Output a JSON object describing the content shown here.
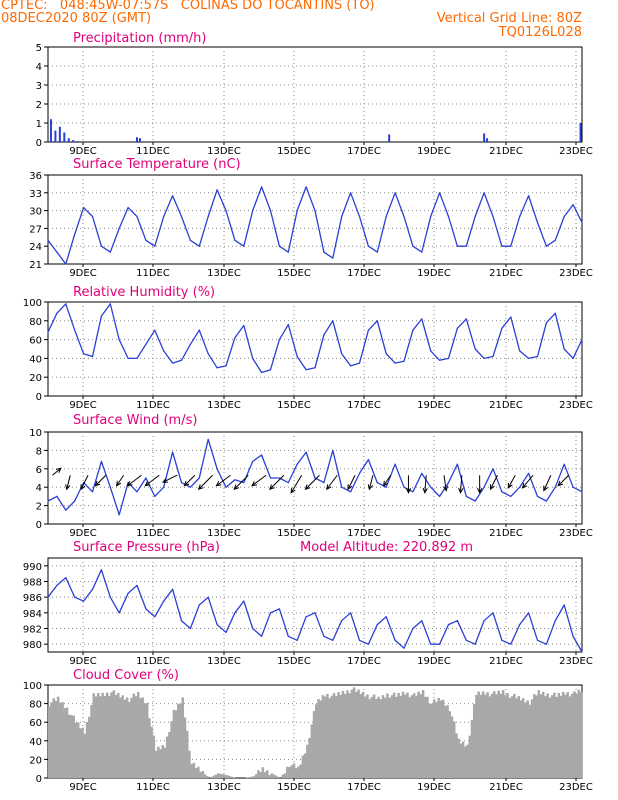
{
  "header": {
    "line1_left": "CPTEC:   048:45W-07:57S   COLINAS DO TOCANTINS (TO)",
    "line2_left": "08DEC2020 80Z (GMT)",
    "line2_right": "Vertical Grid Line: 80Z",
    "line3_right": "TQ0126L028"
  },
  "x_axis_labels": [
    "9DEC",
    "11DEC",
    "13DEC",
    "15DEC",
    "17DEC",
    "19DEC",
    "21DEC",
    "23DEC"
  ],
  "colors": {
    "line": "#2a3fd6",
    "title": "#e0007a",
    "header": "#ff6a00",
    "cloud": "#a8a8a8",
    "arrow": "#000000"
  },
  "chart_data": [
    {
      "id": "precip",
      "type": "bar",
      "title": "Precipitation (mm/h)",
      "ylim": [
        0,
        5
      ],
      "yticks": [
        0,
        1,
        2,
        3,
        4,
        5
      ],
      "xlim": [
        0,
        360
      ],
      "x": [
        2,
        5,
        8,
        11,
        14,
        17,
        20,
        60,
        62,
        230,
        294,
        296,
        359
      ],
      "values": [
        1.2,
        0.6,
        0.8,
        0.5,
        0.2,
        0.1,
        0.05,
        0.25,
        0.2,
        0.4,
        0.45,
        0.2,
        1.0
      ]
    },
    {
      "id": "temp",
      "type": "line",
      "title": "Surface Temperature (nC)",
      "ylim": [
        21,
        36
      ],
      "yticks": [
        21,
        24,
        27,
        30,
        33,
        36
      ],
      "xlim": [
        0,
        360
      ],
      "x": [
        0,
        6,
        12,
        18,
        24,
        30,
        36,
        42,
        48,
        54,
        60,
        66,
        72,
        78,
        84,
        90,
        96,
        102,
        108,
        114,
        120,
        126,
        132,
        138,
        144,
        150,
        156,
        162,
        168,
        174,
        180,
        186,
        192,
        198,
        204,
        210,
        216,
        222,
        228,
        234,
        240,
        246,
        252,
        258,
        264,
        270,
        276,
        282,
        288,
        294,
        300,
        306,
        312,
        318,
        324,
        330,
        336,
        342,
        348,
        354,
        360
      ],
      "values": [
        25,
        23,
        21,
        26,
        30.5,
        29,
        24,
        23,
        27,
        30.5,
        29,
        25,
        24,
        29,
        32.5,
        29,
        25,
        24,
        29,
        33.5,
        30,
        25,
        24,
        30,
        34,
        30,
        24,
        23,
        30,
        34,
        30,
        23,
        22,
        29,
        33,
        29,
        24,
        23,
        29,
        33,
        29,
        24,
        23,
        29,
        33,
        29,
        24,
        24,
        29,
        33,
        29,
        24,
        24,
        29,
        32.5,
        28,
        24,
        25,
        29,
        31,
        28
      ]
    },
    {
      "id": "rh",
      "type": "line",
      "title": "Relative Humidity (%)",
      "ylim": [
        0,
        100
      ],
      "yticks": [
        0,
        20,
        40,
        60,
        80,
        100
      ],
      "xlim": [
        0,
        360
      ],
      "x": [
        0,
        6,
        12,
        18,
        24,
        30,
        36,
        42,
        48,
        54,
        60,
        66,
        72,
        78,
        84,
        90,
        96,
        102,
        108,
        114,
        120,
        126,
        132,
        138,
        144,
        150,
        156,
        162,
        168,
        174,
        180,
        186,
        192,
        198,
        204,
        210,
        216,
        222,
        228,
        234,
        240,
        246,
        252,
        258,
        264,
        270,
        276,
        282,
        288,
        294,
        300,
        306,
        312,
        318,
        324,
        330,
        336,
        342,
        348,
        354,
        360
      ],
      "values": [
        68,
        88,
        98,
        70,
        45,
        42,
        85,
        98,
        60,
        40,
        40,
        55,
        70,
        48,
        35,
        38,
        55,
        70,
        45,
        30,
        32,
        62,
        75,
        40,
        25,
        28,
        60,
        76,
        42,
        28,
        30,
        65,
        80,
        45,
        32,
        35,
        70,
        80,
        45,
        35,
        37,
        70,
        82,
        48,
        38,
        40,
        72,
        82,
        50,
        40,
        42,
        72,
        84,
        48,
        40,
        42,
        78,
        88,
        50,
        40,
        60
      ]
    },
    {
      "id": "wind",
      "type": "line",
      "title": "Surface Wind (m/s)",
      "ylim": [
        0,
        10
      ],
      "yticks": [
        0,
        2,
        4,
        6,
        8,
        10
      ],
      "xlim": [
        0,
        360
      ],
      "x": [
        0,
        6,
        12,
        18,
        24,
        30,
        36,
        42,
        48,
        54,
        60,
        66,
        72,
        78,
        84,
        90,
        96,
        102,
        108,
        114,
        120,
        126,
        132,
        138,
        144,
        150,
        156,
        162,
        168,
        174,
        180,
        186,
        192,
        198,
        204,
        210,
        216,
        222,
        228,
        234,
        240,
        246,
        252,
        258,
        264,
        270,
        276,
        282,
        288,
        294,
        300,
        306,
        312,
        318,
        324,
        330,
        336,
        342,
        348,
        354,
        360
      ],
      "values": [
        2.5,
        3,
        1.5,
        2.5,
        4.5,
        3.5,
        6.8,
        4,
        1,
        4.5,
        3.5,
        5,
        3,
        4,
        7.8,
        4.5,
        4,
        5,
        9.2,
        6,
        4,
        4.8,
        4.5,
        6.8,
        7.5,
        5,
        5,
        4.5,
        6.5,
        7.8,
        5,
        4.5,
        8,
        4,
        3.5,
        5.5,
        7,
        4.5,
        4,
        6.5,
        4,
        3.5,
        5.5,
        4,
        3,
        4.5,
        6.5,
        3,
        2.5,
        4,
        6,
        3.5,
        3,
        4,
        5.5,
        3,
        2.5,
        4,
        6.5,
        4,
        3.5
      ],
      "vectors": [
        {
          "t": 3,
          "u": 1.2,
          "v": 1.0
        },
        {
          "t": 15,
          "u": -0.5,
          "v": -2.0
        },
        {
          "t": 27,
          "u": -1.0,
          "v": -2.0
        },
        {
          "t": 39,
          "u": -1.5,
          "v": -1.5
        },
        {
          "t": 51,
          "u": -1.0,
          "v": -1.5
        },
        {
          "t": 63,
          "u": -2.0,
          "v": -1.5
        },
        {
          "t": 75,
          "u": -2.0,
          "v": -1.5
        },
        {
          "t": 87,
          "u": -2.0,
          "v": -1.0
        },
        {
          "t": 99,
          "u": -1.5,
          "v": -1.5
        },
        {
          "t": 111,
          "u": -2.0,
          "v": -2.0
        },
        {
          "t": 123,
          "u": -2.0,
          "v": -1.5
        },
        {
          "t": 135,
          "u": -2.0,
          "v": -2.0
        },
        {
          "t": 147,
          "u": -2.0,
          "v": -1.5
        },
        {
          "t": 159,
          "u": -2.0,
          "v": -2.0
        },
        {
          "t": 171,
          "u": -1.5,
          "v": -2.5
        },
        {
          "t": 183,
          "u": -2.0,
          "v": -2.0
        },
        {
          "t": 195,
          "u": -1.5,
          "v": -2.0
        },
        {
          "t": 207,
          "u": -1.0,
          "v": -2.0
        },
        {
          "t": 219,
          "u": -0.5,
          "v": -2.0
        },
        {
          "t": 231,
          "u": -1.0,
          "v": -1.5
        },
        {
          "t": 243,
          "u": 0.0,
          "v": -2.5
        },
        {
          "t": 255,
          "u": -0.2,
          "v": -2.5
        },
        {
          "t": 267,
          "u": 0.3,
          "v": -2.2
        },
        {
          "t": 279,
          "u": -0.2,
          "v": -2.5
        },
        {
          "t": 291,
          "u": 0.0,
          "v": -2.5
        },
        {
          "t": 303,
          "u": -1.0,
          "v": -2.0
        },
        {
          "t": 315,
          "u": -1.0,
          "v": -1.8
        },
        {
          "t": 327,
          "u": -1.5,
          "v": -1.8
        },
        {
          "t": 339,
          "u": -1.0,
          "v": -2.2
        },
        {
          "t": 351,
          "u": -1.5,
          "v": -1.5
        }
      ]
    },
    {
      "id": "pres",
      "type": "line",
      "title": "Surface Pressure (hPa)",
      "subtitle": "Model Altitude: 220.892 m",
      "ylim": [
        979,
        991
      ],
      "yticks": [
        980,
        982,
        984,
        986,
        988,
        990
      ],
      "xlim": [
        0,
        360
      ],
      "x": [
        0,
        6,
        12,
        18,
        24,
        30,
        36,
        42,
        48,
        54,
        60,
        66,
        72,
        78,
        84,
        90,
        96,
        102,
        108,
        114,
        120,
        126,
        132,
        138,
        144,
        150,
        156,
        162,
        168,
        174,
        180,
        186,
        192,
        198,
        204,
        210,
        216,
        222,
        228,
        234,
        240,
        246,
        252,
        258,
        264,
        270,
        276,
        282,
        288,
        294,
        300,
        306,
        312,
        318,
        324,
        330,
        336,
        342,
        348,
        354,
        360
      ],
      "values": [
        986,
        987.5,
        988.5,
        986,
        985.5,
        987,
        989.5,
        986,
        984,
        986.5,
        987.5,
        984.5,
        983.5,
        985.5,
        987,
        983,
        982,
        985,
        986,
        982.5,
        981.5,
        984,
        985.5,
        982,
        981,
        984,
        984.5,
        981,
        980.5,
        983.5,
        984,
        981,
        980.5,
        983,
        984,
        980.5,
        980,
        982.5,
        983.5,
        980.5,
        979.5,
        982,
        983,
        980,
        980,
        982.5,
        983,
        980.5,
        980,
        983,
        984,
        980.5,
        980,
        982.5,
        984,
        980.5,
        980,
        983,
        985,
        981,
        979
      ]
    },
    {
      "id": "cloud",
      "type": "area",
      "title": "Cloud Cover (%)",
      "ylim": [
        0,
        100
      ],
      "yticks": [
        0,
        20,
        40,
        60,
        80,
        100
      ],
      "xlim": [
        0,
        360
      ],
      "x": [
        0,
        6,
        12,
        18,
        24,
        30,
        36,
        42,
        48,
        54,
        60,
        66,
        72,
        78,
        84,
        90,
        96,
        102,
        108,
        114,
        120,
        126,
        132,
        138,
        144,
        150,
        156,
        162,
        168,
        174,
        180,
        186,
        192,
        198,
        204,
        210,
        216,
        222,
        228,
        234,
        240,
        246,
        252,
        258,
        264,
        270,
        276,
        282,
        288,
        294,
        300,
        306,
        312,
        318,
        324,
        330,
        336,
        342,
        348,
        354,
        360
      ],
      "values": [
        80,
        85,
        75,
        60,
        50,
        88,
        90,
        92,
        88,
        85,
        90,
        80,
        30,
        35,
        70,
        85,
        15,
        8,
        0,
        5,
        3,
        0,
        0,
        2,
        10,
        5,
        0,
        15,
        10,
        35,
        80,
        90,
        88,
        92,
        95,
        92,
        88,
        85,
        90,
        88,
        92,
        88,
        93,
        80,
        85,
        75,
        40,
        35,
        90,
        92,
        90,
        93,
        88,
        85,
        82,
        92,
        90,
        88,
        92,
        90,
        95
      ]
    }
  ]
}
